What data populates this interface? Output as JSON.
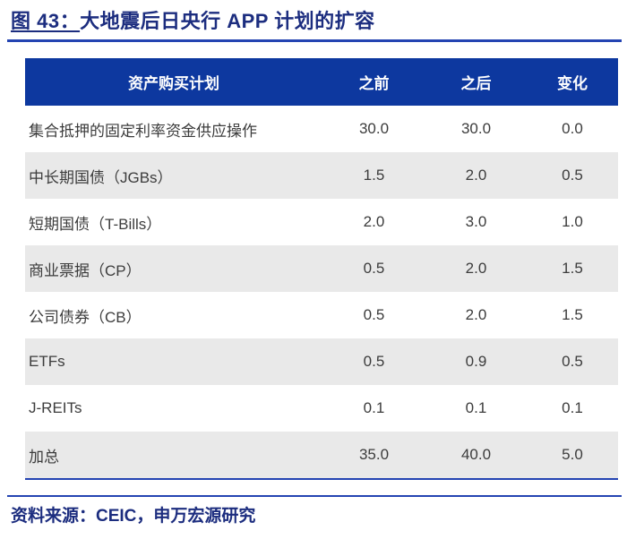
{
  "figure": {
    "caption_prefix": "图 43：",
    "caption_title": "大地震后日央行 APP 计划的扩容"
  },
  "table": {
    "columns": [
      "资产购买计划",
      "之前",
      "之后",
      "变化"
    ],
    "rows": [
      {
        "label": "集合抵押的固定利率资金供应操作",
        "before": "30.0",
        "after": "30.0",
        "change": "0.0"
      },
      {
        "label": "中长期国债（JGBs）",
        "before": "1.5",
        "after": "2.0",
        "change": "0.5"
      },
      {
        "label": "短期国债（T-Bills）",
        "before": "2.0",
        "after": "3.0",
        "change": "1.0"
      },
      {
        "label": "商业票据（CP）",
        "before": "0.5",
        "after": "2.0",
        "change": "1.5"
      },
      {
        "label": "公司债券（CB）",
        "before": "0.5",
        "after": "2.0",
        "change": "1.5"
      },
      {
        "label": "ETFs",
        "before": "0.5",
        "after": "0.9",
        "change": "0.5"
      },
      {
        "label": "J-REITs",
        "before": "0.1",
        "after": "0.1",
        "change": "0.1"
      },
      {
        "label": "加总",
        "before": "35.0",
        "after": "40.0",
        "change": "5.0"
      }
    ]
  },
  "footer": {
    "source_text": "资料来源：CEIC，申万宏源研究"
  },
  "colors": {
    "header_bg": "#0D389F",
    "navy_text": "#1C2D7F",
    "rule_blue": "#2444B2",
    "alt_row_bg": "#E9E9E9",
    "body_text": "#3C3C3C"
  },
  "chart_data": {
    "type": "table",
    "title": "图 43：大地震后日央行 APP 计划的扩容",
    "categories": [
      "集合抵押的固定利率资金供应操作",
      "中长期国债（JGBs）",
      "短期国债（T-Bills）",
      "商业票据（CP）",
      "公司债券（CB）",
      "ETFs",
      "J-REITs",
      "加总"
    ],
    "series": [
      {
        "name": "之前",
        "values": [
          30.0,
          1.5,
          2.0,
          0.5,
          0.5,
          0.5,
          0.1,
          35.0
        ]
      },
      {
        "name": "之后",
        "values": [
          30.0,
          2.0,
          3.0,
          2.0,
          2.0,
          0.9,
          0.1,
          40.0
        ]
      },
      {
        "name": "变化",
        "values": [
          0.0,
          0.5,
          1.0,
          1.5,
          1.5,
          0.5,
          0.1,
          5.0
        ]
      }
    ],
    "source": "资料来源：CEIC，申万宏源研究"
  }
}
